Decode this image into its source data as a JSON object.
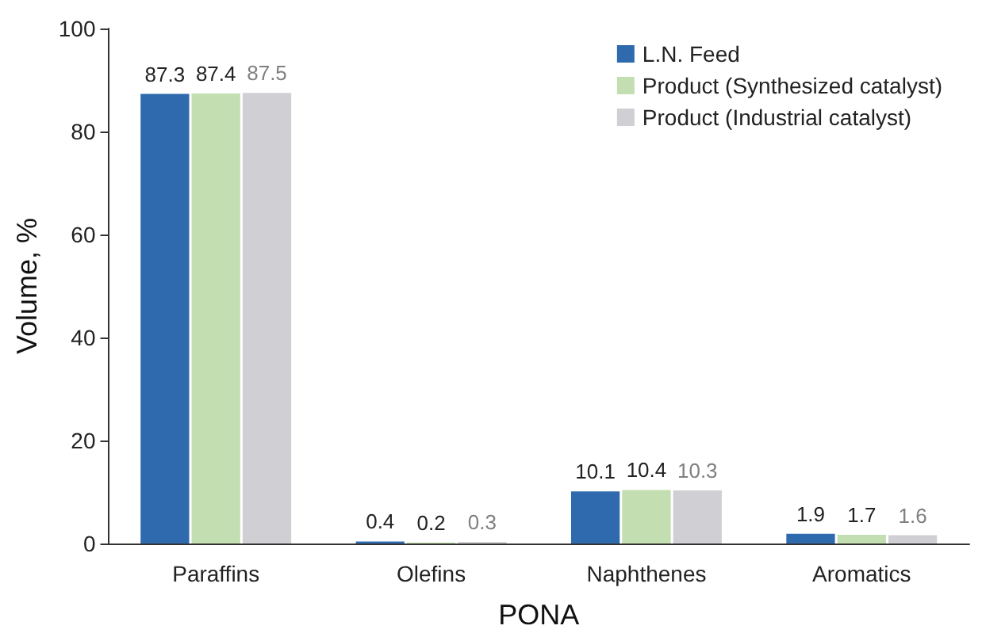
{
  "chart_data": {
    "type": "bar",
    "xlabel": "PONA",
    "ylabel": "Volume, %",
    "categories": [
      "Paraffins",
      "Olefins",
      "Naphthenes",
      "Aromatics"
    ],
    "series": [
      {
        "name": "L.N. Feed",
        "color": "#2e6aad",
        "values": [
          87.3,
          0.4,
          10.1,
          1.9
        ]
      },
      {
        "name": "Product (Synthesized catalyst)",
        "color": "#c3deb0",
        "values": [
          87.4,
          0.2,
          10.4,
          1.7
        ]
      },
      {
        "name": "Product (Industrial catalyst)",
        "color": "#d0cfd4",
        "values": [
          87.5,
          0.3,
          10.3,
          1.6
        ]
      }
    ],
    "ylim": [
      0,
      100
    ],
    "yticks": [
      0,
      20,
      40,
      60,
      80,
      100
    ],
    "grid": false,
    "legend": "top right",
    "data_labels": true
  }
}
